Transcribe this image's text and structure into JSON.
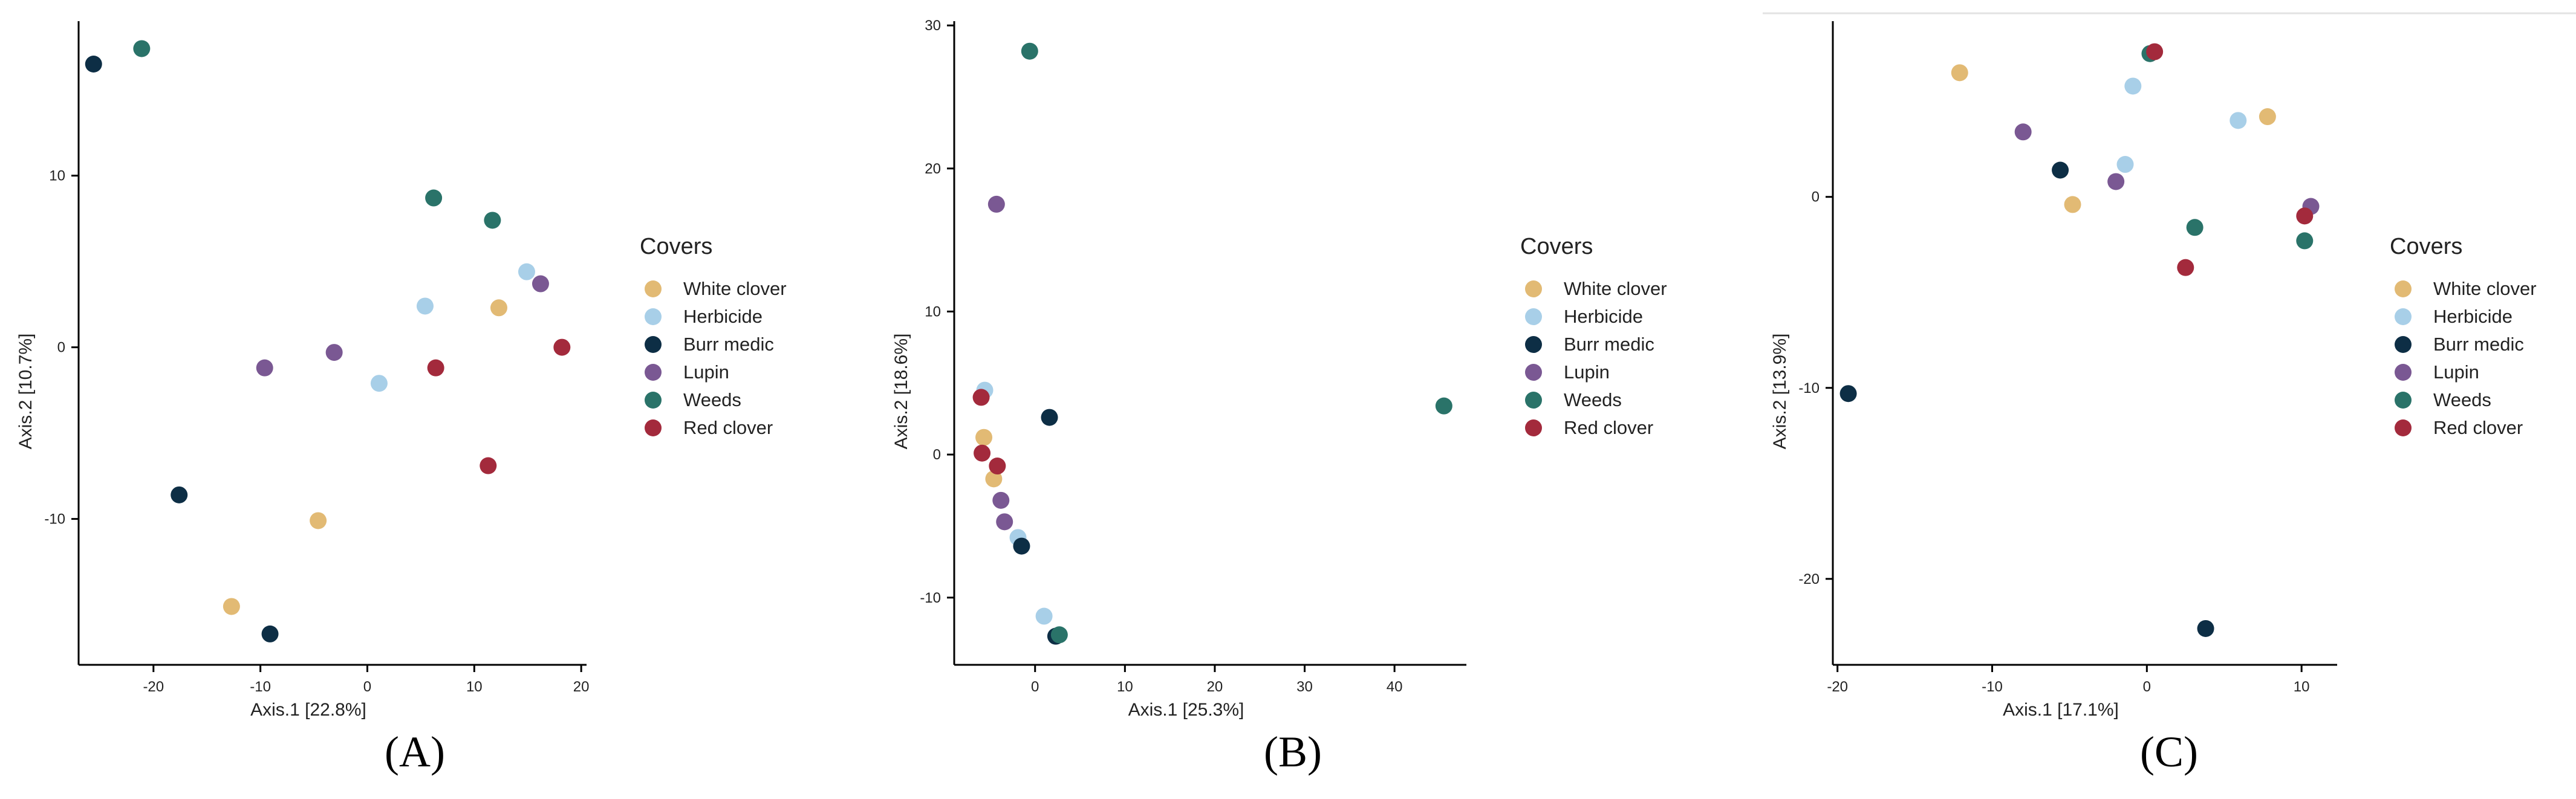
{
  "colors": {
    "White clover": "#E2BA74",
    "Herbicide": "#A8CFE8",
    "Burr medic": "#0D2E45",
    "Lupin": "#7A5893",
    "Weeds": "#2A7369",
    "Red clover": "#A32A3C"
  },
  "chart_data": [
    {
      "type": "scatter",
      "panel_label": "(A)",
      "xlabel": "Axis.1   [22.8%]",
      "ylabel": "Axis.2   [10.7%]",
      "xlim": [
        -27,
        20.5
      ],
      "ylim": [
        -18.5,
        19
      ],
      "xticks": [
        -20,
        -10,
        0,
        10,
        20
      ],
      "yticks": [
        -10,
        0,
        10
      ],
      "legend": {
        "title": "Covers",
        "entries": [
          "White clover",
          "Herbicide",
          "Burr medic",
          "Lupin",
          "Weeds",
          "Red clover"
        ]
      },
      "series": [
        {
          "name": "White clover",
          "points": [
            [
              12.3,
              2.3
            ],
            [
              -4.6,
              -10.1
            ],
            [
              -12.7,
              -15.1
            ]
          ]
        },
        {
          "name": "Herbicide",
          "points": [
            [
              14.9,
              4.4
            ],
            [
              5.4,
              2.4
            ],
            [
              1.1,
              -2.1
            ]
          ]
        },
        {
          "name": "Burr medic",
          "points": [
            [
              -25.6,
              16.5
            ],
            [
              -17.6,
              -8.6
            ],
            [
              -9.1,
              -16.7
            ]
          ]
        },
        {
          "name": "Lupin",
          "points": [
            [
              16.2,
              3.7
            ],
            [
              -3.1,
              -0.3
            ],
            [
              -9.6,
              -1.2
            ]
          ]
        },
        {
          "name": "Weeds",
          "points": [
            [
              -21.1,
              17.4
            ],
            [
              6.2,
              8.7
            ],
            [
              11.7,
              7.4
            ]
          ]
        },
        {
          "name": "Red clover",
          "points": [
            [
              18.2,
              0.0
            ],
            [
              6.4,
              -1.2
            ],
            [
              11.3,
              -6.9
            ]
          ]
        }
      ]
    },
    {
      "type": "scatter",
      "panel_label": "(B)",
      "xlabel": "Axis.1   [25.3%]",
      "ylabel": "Axis.2   [18.6%]",
      "xlim": [
        -9,
        48
      ],
      "ylim": [
        -14.7,
        30.3
      ],
      "xticks": [
        0,
        10,
        20,
        30,
        40
      ],
      "yticks": [
        -10,
        0,
        10,
        20,
        30
      ],
      "legend": {
        "title": "Covers",
        "entries": [
          "White clover",
          "Herbicide",
          "Burr medic",
          "Lupin",
          "Weeds",
          "Red clover"
        ]
      },
      "series": [
        {
          "name": "White clover",
          "points": [
            [
              -5.7,
              1.2
            ],
            [
              -4.6,
              -1.7
            ]
          ]
        },
        {
          "name": "Herbicide",
          "points": [
            [
              -5.6,
              4.5
            ],
            [
              -1.9,
              -5.8
            ],
            [
              1.0,
              -11.3
            ]
          ]
        },
        {
          "name": "Burr medic",
          "points": [
            [
              1.6,
              2.6
            ],
            [
              -1.5,
              -6.4
            ],
            [
              2.3,
              -12.7
            ]
          ]
        },
        {
          "name": "Lupin",
          "points": [
            [
              -4.3,
              17.5
            ],
            [
              -3.8,
              -3.2
            ],
            [
              -3.4,
              -4.7
            ]
          ]
        },
        {
          "name": "Weeds",
          "points": [
            [
              -0.6,
              28.2
            ],
            [
              45.5,
              3.4
            ],
            [
              2.7,
              -12.6
            ]
          ]
        },
        {
          "name": "Red clover",
          "points": [
            [
              -6.0,
              4.0
            ],
            [
              -5.9,
              0.1
            ],
            [
              -4.2,
              -0.8
            ]
          ]
        }
      ]
    },
    {
      "type": "scatter",
      "panel_label": "(C)",
      "xlabel": "Axis.1   [17.1%]",
      "ylabel": "Axis.2   [13.9%]",
      "xlim": [
        -20.3,
        12.3
      ],
      "ylim": [
        -24.5,
        9.2
      ],
      "xticks": [
        -20,
        -10,
        0,
        10
      ],
      "yticks": [
        -20,
        -10,
        0
      ],
      "legend": {
        "title": "Covers",
        "entries": [
          "White clover",
          "Herbicide",
          "Burr medic",
          "Lupin",
          "Weeds",
          "Red clover"
        ]
      },
      "series": [
        {
          "name": "White clover",
          "points": [
            [
              -12.1,
              6.5
            ],
            [
              7.8,
              4.2
            ],
            [
              -4.8,
              -0.4
            ]
          ]
        },
        {
          "name": "Herbicide",
          "points": [
            [
              -0.9,
              5.8
            ],
            [
              5.9,
              4.0
            ],
            [
              -1.4,
              1.7
            ]
          ]
        },
        {
          "name": "Burr medic",
          "points": [
            [
              -5.6,
              1.4
            ],
            [
              -19.3,
              -10.3
            ],
            [
              3.8,
              -22.6
            ]
          ]
        },
        {
          "name": "Lupin",
          "points": [
            [
              -8.0,
              3.4
            ],
            [
              -2.0,
              0.8
            ],
            [
              10.6,
              -0.5
            ]
          ]
        },
        {
          "name": "Weeds",
          "points": [
            [
              0.2,
              7.5
            ],
            [
              3.1,
              -1.6
            ],
            [
              10.2,
              -2.3
            ]
          ]
        },
        {
          "name": "Red clover",
          "points": [
            [
              0.5,
              7.6
            ],
            [
              2.5,
              -3.7
            ],
            [
              10.2,
              -1.0
            ]
          ]
        }
      ]
    }
  ]
}
